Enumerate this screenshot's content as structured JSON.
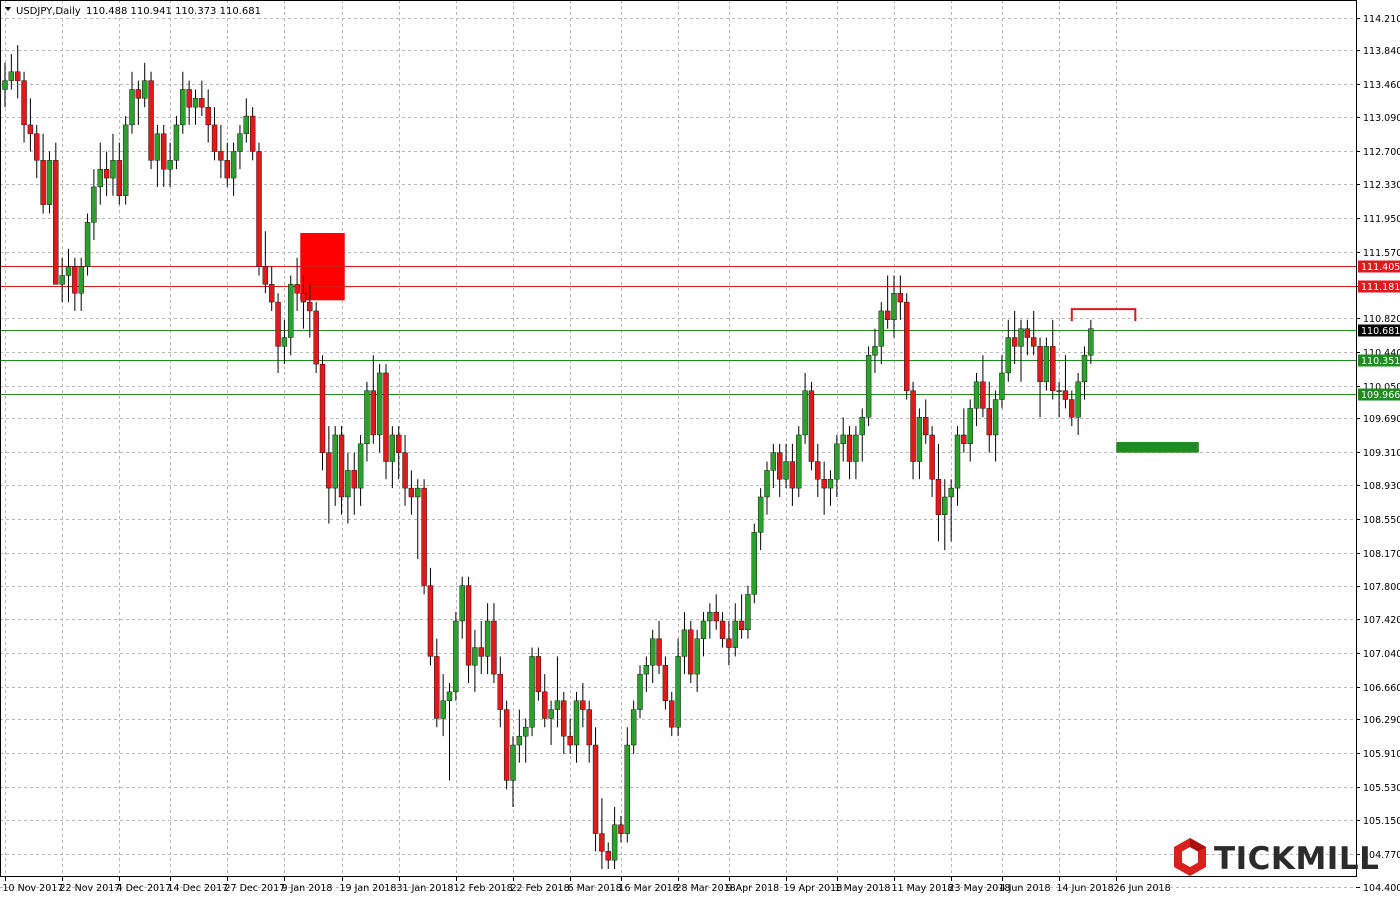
{
  "header": {
    "symbol": "USDJPY,Daily",
    "ohlc": "110.488 110.941 110.373 110.681"
  },
  "logo": {
    "text": "TICKMILL"
  },
  "colors": {
    "bull": "#2ca02c",
    "bear": "#e0191b",
    "grid": "#b8b8b8",
    "resistance": "#e0191b",
    "support": "#1e8c1e",
    "current": "#000000",
    "zone": "#ff0000"
  },
  "chart_data": {
    "type": "candlestick",
    "title": "USDJPY,Daily",
    "ylim": [
      104.51,
      114.41
    ],
    "y_ticks": [
      "114.210",
      "113.840",
      "113.460",
      "113.090",
      "112.700",
      "112.330",
      "111.950",
      "111.570",
      "111.180",
      "110.820",
      "110.440",
      "110.050",
      "109.690",
      "109.310",
      "108.930",
      "108.550",
      "108.170",
      "107.800",
      "107.420",
      "107.040",
      "106.660",
      "106.290",
      "105.910",
      "105.530",
      "105.150",
      "104.770",
      "104.400"
    ],
    "x_labels": [
      {
        "i": 0,
        "label": "10 Nov 2017"
      },
      {
        "i": 9,
        "label": "22 Nov 2017"
      },
      {
        "i": 18,
        "label": "4 Dec 2017"
      },
      {
        "i": 26,
        "label": "14 Dec 2017"
      },
      {
        "i": 35,
        "label": "27 Dec 2017"
      },
      {
        "i": 44,
        "label": "9 Jan 2018"
      },
      {
        "i": 53,
        "label": "19 Jan 2018"
      },
      {
        "i": 62,
        "label": "31 Jan 2018"
      },
      {
        "i": 71,
        "label": "12 Feb 2018"
      },
      {
        "i": 80,
        "label": "22 Feb 2018"
      },
      {
        "i": 89,
        "label": "6 Mar 2018"
      },
      {
        "i": 97,
        "label": "16 Mar 2018"
      },
      {
        "i": 106,
        "label": "28 Mar 2018"
      },
      {
        "i": 114,
        "label": "9 Apr 2018"
      },
      {
        "i": 123,
        "label": "19 Apr 2018"
      },
      {
        "i": 131,
        "label": "1 May 2018"
      },
      {
        "i": 140,
        "label": "11 May 2018"
      },
      {
        "i": 149,
        "label": "23 May 2018"
      },
      {
        "i": 157,
        "label": "4 Jun 2018"
      },
      {
        "i": 166,
        "label": "14 Jun 2018"
      },
      {
        "i": 175,
        "label": "26 Jun 2018"
      }
    ],
    "candles": [
      [
        113.4,
        113.7,
        113.2,
        113.5
      ],
      [
        113.5,
        113.8,
        113.4,
        113.6
      ],
      [
        113.6,
        113.9,
        113.3,
        113.5
      ],
      [
        113.5,
        113.6,
        112.8,
        113.0
      ],
      [
        113.0,
        113.3,
        112.7,
        112.9
      ],
      [
        112.9,
        113.0,
        112.4,
        112.6
      ],
      [
        112.6,
        112.9,
        112.0,
        112.1
      ],
      [
        112.1,
        112.7,
        112.0,
        112.6
      ],
      [
        112.6,
        112.8,
        111.2,
        111.2
      ],
      [
        111.2,
        111.5,
        111.0,
        111.3
      ],
      [
        111.3,
        111.6,
        111.0,
        111.4
      ],
      [
        111.4,
        111.5,
        110.9,
        111.1
      ],
      [
        111.1,
        111.5,
        110.9,
        111.4
      ],
      [
        111.4,
        112.0,
        111.3,
        111.9
      ],
      [
        111.9,
        112.5,
        111.7,
        112.3
      ],
      [
        112.3,
        112.8,
        112.1,
        112.5
      ],
      [
        112.5,
        112.7,
        112.2,
        112.4
      ],
      [
        112.4,
        112.9,
        112.2,
        112.6
      ],
      [
        112.6,
        112.8,
        112.1,
        112.2
      ],
      [
        112.2,
        113.1,
        112.1,
        113.0
      ],
      [
        113.0,
        113.6,
        112.9,
        113.4
      ],
      [
        113.4,
        113.5,
        113.0,
        113.3
      ],
      [
        113.3,
        113.7,
        113.2,
        113.5
      ],
      [
        113.5,
        113.6,
        112.5,
        112.6
      ],
      [
        112.6,
        113.0,
        112.3,
        112.9
      ],
      [
        112.9,
        113.0,
        112.3,
        112.5
      ],
      [
        112.5,
        112.8,
        112.3,
        112.6
      ],
      [
        112.6,
        113.1,
        112.5,
        113.0
      ],
      [
        113.0,
        113.6,
        112.9,
        113.4
      ],
      [
        113.4,
        113.5,
        113.0,
        113.2
      ],
      [
        113.2,
        113.4,
        113.0,
        113.3
      ],
      [
        113.3,
        113.5,
        113.1,
        113.2
      ],
      [
        113.2,
        113.4,
        112.8,
        113.0
      ],
      [
        113.0,
        113.2,
        112.6,
        112.7
      ],
      [
        112.7,
        113.0,
        112.4,
        112.6
      ],
      [
        112.6,
        112.8,
        112.3,
        112.4
      ],
      [
        112.4,
        112.8,
        112.2,
        112.7
      ],
      [
        112.7,
        113.0,
        112.5,
        112.9
      ],
      [
        112.9,
        113.3,
        112.8,
        113.1
      ],
      [
        113.1,
        113.2,
        112.6,
        112.7
      ],
      [
        112.7,
        112.8,
        111.3,
        111.4
      ],
      [
        111.4,
        111.8,
        111.1,
        111.2
      ],
      [
        111.2,
        111.4,
        110.9,
        111.0
      ],
      [
        111.0,
        111.1,
        110.2,
        110.5
      ],
      [
        110.5,
        110.8,
        110.3,
        110.6
      ],
      [
        110.6,
        111.3,
        110.4,
        111.2
      ],
      [
        111.2,
        111.5,
        110.9,
        111.1
      ],
      [
        111.1,
        111.3,
        110.7,
        111.0
      ],
      [
        111.0,
        111.2,
        110.6,
        110.9
      ],
      [
        110.9,
        111.0,
        110.2,
        110.3
      ],
      [
        110.3,
        110.4,
        109.1,
        109.3
      ],
      [
        109.3,
        109.6,
        108.5,
        108.9
      ],
      [
        108.9,
        109.6,
        108.7,
        109.5
      ],
      [
        109.5,
        109.6,
        108.6,
        108.8
      ],
      [
        108.8,
        109.3,
        108.5,
        109.1
      ],
      [
        109.1,
        109.3,
        108.6,
        108.9
      ],
      [
        108.9,
        109.5,
        108.7,
        109.4
      ],
      [
        109.4,
        110.1,
        109.2,
        110.0
      ],
      [
        110.0,
        110.4,
        109.4,
        109.5
      ],
      [
        109.5,
        110.3,
        109.3,
        110.2
      ],
      [
        110.2,
        110.3,
        109.0,
        109.2
      ],
      [
        109.2,
        109.6,
        108.9,
        109.5
      ],
      [
        109.5,
        109.6,
        109.0,
        109.3
      ],
      [
        109.3,
        109.5,
        108.7,
        108.9
      ],
      [
        108.9,
        109.1,
        108.6,
        108.8
      ],
      [
        108.8,
        109.0,
        108.1,
        108.9
      ],
      [
        108.9,
        109.0,
        107.7,
        107.8
      ],
      [
        107.8,
        108.0,
        106.9,
        107.0
      ],
      [
        107.0,
        107.2,
        106.2,
        106.3
      ],
      [
        106.3,
        106.8,
        106.1,
        106.5
      ],
      [
        106.5,
        106.7,
        105.6,
        106.6
      ],
      [
        106.6,
        107.5,
        106.5,
        107.4
      ],
      [
        107.4,
        107.9,
        107.2,
        107.8
      ],
      [
        107.8,
        107.9,
        106.7,
        106.9
      ],
      [
        106.9,
        107.3,
        106.6,
        107.1
      ],
      [
        107.1,
        107.4,
        106.8,
        107.0
      ],
      [
        107.0,
        107.6,
        106.8,
        107.4
      ],
      [
        107.4,
        107.6,
        106.7,
        106.8
      ],
      [
        106.8,
        107.0,
        106.2,
        106.4
      ],
      [
        106.4,
        106.5,
        105.5,
        105.6
      ],
      [
        105.6,
        106.1,
        105.3,
        106.0
      ],
      [
        106.0,
        106.4,
        105.8,
        106.1
      ],
      [
        106.1,
        106.3,
        105.8,
        106.2
      ],
      [
        106.2,
        107.1,
        106.1,
        107.0
      ],
      [
        107.0,
        107.1,
        106.5,
        106.6
      ],
      [
        106.6,
        106.8,
        106.2,
        106.3
      ],
      [
        106.3,
        106.5,
        106.0,
        106.4
      ],
      [
        106.4,
        107.0,
        106.2,
        106.5
      ],
      [
        106.5,
        106.6,
        105.9,
        106.1
      ],
      [
        106.1,
        106.3,
        105.9,
        106.0
      ],
      [
        106.0,
        106.6,
        105.8,
        106.5
      ],
      [
        106.5,
        106.7,
        106.2,
        106.4
      ],
      [
        106.4,
        106.5,
        105.8,
        106.0
      ],
      [
        106.0,
        106.2,
        104.8,
        105.0
      ],
      [
        105.0,
        105.4,
        104.6,
        104.8
      ],
      [
        104.8,
        104.9,
        104.6,
        104.7
      ],
      [
        104.7,
        105.3,
        104.6,
        105.1
      ],
      [
        105.1,
        105.2,
        104.9,
        105.0
      ],
      [
        105.0,
        106.2,
        104.9,
        106.0
      ],
      [
        106.0,
        106.5,
        105.9,
        106.4
      ],
      [
        106.4,
        106.9,
        106.3,
        106.8
      ],
      [
        106.8,
        107.0,
        106.6,
        106.9
      ],
      [
        106.9,
        107.3,
        106.7,
        107.2
      ],
      [
        107.2,
        107.4,
        106.8,
        106.9
      ],
      [
        106.9,
        107.0,
        106.4,
        106.5
      ],
      [
        106.5,
        106.6,
        106.1,
        106.2
      ],
      [
        106.2,
        107.2,
        106.1,
        107.0
      ],
      [
        107.0,
        107.5,
        106.8,
        107.3
      ],
      [
        107.3,
        107.4,
        106.7,
        106.8
      ],
      [
        106.8,
        107.3,
        106.6,
        107.2
      ],
      [
        107.2,
        107.5,
        107.0,
        107.4
      ],
      [
        107.4,
        107.6,
        107.2,
        107.5
      ],
      [
        107.5,
        107.7,
        107.3,
        107.4
      ],
      [
        107.4,
        107.5,
        107.1,
        107.2
      ],
      [
        107.2,
        107.4,
        106.9,
        107.1
      ],
      [
        107.1,
        107.6,
        107.0,
        107.4
      ],
      [
        107.4,
        107.7,
        107.2,
        107.3
      ],
      [
        107.3,
        107.8,
        107.2,
        107.7
      ],
      [
        107.7,
        108.5,
        107.6,
        108.4
      ],
      [
        108.4,
        108.9,
        108.2,
        108.8
      ],
      [
        108.8,
        109.2,
        108.6,
        109.1
      ],
      [
        109.1,
        109.4,
        108.9,
        109.3
      ],
      [
        109.3,
        109.4,
        108.8,
        109.0
      ],
      [
        109.0,
        109.4,
        108.9,
        109.2
      ],
      [
        109.2,
        109.4,
        108.7,
        108.9
      ],
      [
        108.9,
        109.6,
        108.8,
        109.5
      ],
      [
        109.5,
        110.2,
        109.4,
        110.0
      ],
      [
        110.0,
        110.1,
        109.1,
        109.2
      ],
      [
        109.2,
        109.4,
        108.8,
        109.0
      ],
      [
        109.0,
        109.2,
        108.6,
        108.9
      ],
      [
        108.9,
        109.1,
        108.7,
        109.0
      ],
      [
        109.0,
        109.5,
        108.8,
        109.4
      ],
      [
        109.4,
        109.7,
        109.2,
        109.5
      ],
      [
        109.5,
        109.6,
        109.0,
        109.2
      ],
      [
        109.2,
        109.6,
        109.0,
        109.5
      ],
      [
        109.5,
        109.8,
        109.2,
        109.7
      ],
      [
        109.7,
        110.5,
        109.6,
        110.4
      ],
      [
        110.4,
        110.7,
        110.2,
        110.5
      ],
      [
        110.5,
        111.0,
        110.3,
        110.9
      ],
      [
        110.9,
        111.3,
        110.7,
        110.8
      ],
      [
        110.8,
        111.3,
        110.6,
        111.1
      ],
      [
        111.1,
        111.3,
        110.8,
        111.0
      ],
      [
        111.0,
        111.1,
        109.9,
        110.0
      ],
      [
        110.0,
        110.1,
        109.0,
        109.2
      ],
      [
        109.2,
        109.8,
        109.0,
        109.7
      ],
      [
        109.7,
        109.9,
        109.4,
        109.5
      ],
      [
        109.5,
        109.6,
        108.8,
        109.0
      ],
      [
        109.0,
        109.4,
        108.3,
        108.6
      ],
      [
        108.6,
        109.0,
        108.2,
        108.8
      ],
      [
        108.8,
        109.0,
        108.3,
        108.9
      ],
      [
        108.9,
        109.6,
        108.7,
        109.5
      ],
      [
        109.5,
        109.8,
        109.3,
        109.4
      ],
      [
        109.4,
        109.9,
        109.2,
        109.8
      ],
      [
        109.8,
        110.2,
        109.6,
        110.1
      ],
      [
        110.1,
        110.4,
        109.7,
        109.8
      ],
      [
        109.8,
        110.1,
        109.3,
        109.5
      ],
      [
        109.5,
        110.0,
        109.2,
        109.9
      ],
      [
        109.9,
        110.4,
        109.8,
        110.2
      ],
      [
        110.2,
        110.8,
        110.1,
        110.6
      ],
      [
        110.6,
        110.9,
        110.3,
        110.5
      ],
      [
        110.5,
        110.8,
        110.1,
        110.7
      ],
      [
        110.7,
        110.8,
        110.4,
        110.6
      ],
      [
        110.6,
        110.9,
        110.4,
        110.5
      ],
      [
        110.5,
        110.6,
        109.7,
        110.1
      ],
      [
        110.1,
        110.6,
        110.0,
        110.5
      ],
      [
        110.5,
        110.8,
        109.9,
        110.0
      ],
      [
        110.0,
        110.1,
        109.7,
        110.0
      ],
      [
        110.0,
        110.4,
        109.8,
        109.9
      ],
      [
        109.9,
        110.0,
        109.6,
        109.7
      ],
      [
        109.7,
        110.2,
        109.5,
        110.1
      ],
      [
        110.1,
        110.5,
        109.9,
        110.4
      ],
      [
        110.4,
        110.8,
        110.3,
        110.7
      ]
    ],
    "levels": [
      {
        "name": "resistance-111405",
        "value": 111.405,
        "label": "111.405",
        "style": "resistance"
      },
      {
        "name": "resistance-111181",
        "value": 111.181,
        "label": "111.181",
        "style": "resistance"
      },
      {
        "name": "current-110681",
        "value": 110.681,
        "label": "110.681",
        "style": "current"
      },
      {
        "name": "support-110351",
        "value": 110.351,
        "label": "110.351",
        "style": "support"
      },
      {
        "name": "support-109966",
        "value": 109.966,
        "label": "109.966",
        "style": "support"
      }
    ],
    "annotations": [
      {
        "name": "red-supply-zone",
        "type": "rect",
        "i0": 46.5,
        "i1": 53.5,
        "y_top": 111.78,
        "y_bottom": 111.02,
        "color": "#ff0000"
      },
      {
        "name": "red-top-marker",
        "type": "bracket",
        "i0": 168,
        "i1": 178,
        "y": 110.92,
        "color": "#e0191b"
      },
      {
        "name": "green-target-zone",
        "type": "rect",
        "i0": 175,
        "i1": 188,
        "y_top": 109.42,
        "y_bottom": 109.3,
        "color": "#1e8c1e"
      }
    ]
  }
}
